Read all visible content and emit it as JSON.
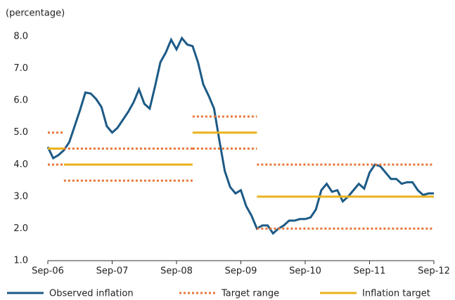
{
  "chart_data": {
    "type": "line",
    "ylabel": "(percentage)",
    "categories": [
      "Sep-06",
      null,
      null,
      null,
      null,
      null,
      null,
      null,
      null,
      null,
      null,
      null,
      "Sep-07",
      null,
      null,
      null,
      null,
      null,
      null,
      null,
      null,
      null,
      null,
      null,
      "Sep-08",
      null,
      null,
      null,
      null,
      null,
      null,
      null,
      null,
      null,
      null,
      null,
      "Sep-09",
      null,
      null,
      null,
      null,
      null,
      null,
      null,
      null,
      null,
      null,
      null,
      "Sep-10",
      null,
      null,
      null,
      null,
      null,
      null,
      null,
      null,
      null,
      null,
      null,
      "Sep-11",
      null,
      null,
      null,
      null,
      null,
      null,
      null,
      null,
      null,
      null,
      null,
      "Sep-12"
    ],
    "ylim": [
      1,
      8
    ],
    "yticks": [
      {
        "value": 1,
        "label": "1.0"
      },
      {
        "value": 2,
        "label": "2.0"
      },
      {
        "value": 3,
        "label": "3.0"
      },
      {
        "value": 4,
        "label": "4.0"
      },
      {
        "value": 5,
        "label": "5.0"
      },
      {
        "value": 6,
        "label": "6.0"
      },
      {
        "value": 7,
        "label": "7.0"
      },
      {
        "value": 8,
        "label": "8.0"
      }
    ],
    "series": [
      {
        "name": "Observed inflation",
        "color": "#1c5a86",
        "values": [
          4.55,
          4.2,
          4.3,
          4.45,
          4.7,
          5.2,
          5.7,
          6.25,
          6.22,
          6.05,
          5.8,
          5.2,
          5.0,
          5.15,
          5.4,
          5.65,
          5.95,
          6.35,
          5.9,
          5.75,
          6.45,
          7.2,
          7.5,
          7.9,
          7.6,
          7.95,
          7.75,
          7.7,
          7.2,
          6.5,
          6.15,
          5.75,
          4.75,
          3.8,
          3.3,
          3.1,
          3.2,
          2.7,
          2.4,
          2.0,
          2.1,
          2.1,
          1.85,
          2.0,
          2.1,
          2.25,
          2.25,
          2.3,
          2.3,
          2.35,
          2.6,
          3.2,
          3.4,
          3.15,
          3.2,
          2.85,
          3.0,
          3.2,
          3.4,
          3.25,
          3.75,
          4.0,
          3.95,
          3.75,
          3.55,
          3.55,
          3.4,
          3.45,
          3.45,
          3.2,
          3.05,
          3.1,
          3.1
        ]
      },
      {
        "name": "Target range",
        "color": "#e8773a",
        "dotted": true,
        "segments": [
          {
            "x": [
              0,
              3
            ],
            "values": [
              4.0,
              5.0
            ]
          },
          {
            "x": [
              3,
              27
            ],
            "values": [
              3.5,
              4.5
            ]
          },
          {
            "x": [
              27,
              39
            ],
            "values": [
              4.5,
              5.5
            ]
          },
          {
            "x": [
              39,
              72
            ],
            "values": [
              2.0,
              4.0
            ]
          }
        ]
      },
      {
        "name": "Inflation target",
        "color": "#e9b21e",
        "segments": [
          {
            "x": [
              0,
              3
            ],
            "value": 4.5
          },
          {
            "x": [
              3,
              27
            ],
            "value": 4.0
          },
          {
            "x": [
              27,
              39
            ],
            "value": 5.0
          },
          {
            "x": [
              39,
              72
            ],
            "value": 3.0
          }
        ]
      }
    ]
  }
}
